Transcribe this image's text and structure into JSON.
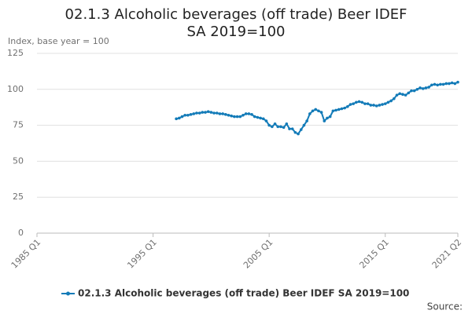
{
  "chart_data": {
    "type": "line",
    "title": "02.1.3 Alcoholic beverages (off trade) Beer IDEF SA 2019=100",
    "y_label": "Index, base year = 100",
    "source": "Source:",
    "xlim": [
      "1985 Q1",
      "2021 Q2"
    ],
    "xticks": [
      "1985 Q1",
      "1995 Q1",
      "2005 Q1",
      "2015 Q1",
      "2021 Q2"
    ],
    "ylim": [
      0,
      125
    ],
    "yticks": [
      0,
      25,
      50,
      75,
      100,
      125
    ],
    "grid": true,
    "x": [
      "1997 Q1",
      "1997 Q2",
      "1997 Q3",
      "1997 Q4",
      "1998 Q1",
      "1998 Q2",
      "1998 Q3",
      "1998 Q4",
      "1999 Q1",
      "1999 Q2",
      "1999 Q3",
      "1999 Q4",
      "2000 Q1",
      "2000 Q2",
      "2000 Q3",
      "2000 Q4",
      "2001 Q1",
      "2001 Q2",
      "2001 Q3",
      "2001 Q4",
      "2002 Q1",
      "2002 Q2",
      "2002 Q3",
      "2002 Q4",
      "2003 Q1",
      "2003 Q2",
      "2003 Q3",
      "2003 Q4",
      "2004 Q1",
      "2004 Q2",
      "2004 Q3",
      "2004 Q4",
      "2005 Q1",
      "2005 Q2",
      "2005 Q3",
      "2005 Q4",
      "2006 Q1",
      "2006 Q2",
      "2006 Q3",
      "2006 Q4",
      "2007 Q1",
      "2007 Q2",
      "2007 Q3",
      "2007 Q4",
      "2008 Q1",
      "2008 Q2",
      "2008 Q3",
      "2008 Q4",
      "2009 Q1",
      "2009 Q2",
      "2009 Q3",
      "2009 Q4",
      "2010 Q1",
      "2010 Q2",
      "2010 Q3",
      "2010 Q4",
      "2011 Q1",
      "2011 Q2",
      "2011 Q3",
      "2011 Q4",
      "2012 Q1",
      "2012 Q2",
      "2012 Q3",
      "2012 Q4",
      "2013 Q1",
      "2013 Q2",
      "2013 Q3",
      "2013 Q4",
      "2014 Q1",
      "2014 Q2",
      "2014 Q3",
      "2014 Q4",
      "2015 Q1",
      "2015 Q2",
      "2015 Q3",
      "2015 Q4",
      "2016 Q1",
      "2016 Q2",
      "2016 Q3",
      "2016 Q4",
      "2017 Q1",
      "2017 Q2",
      "2017 Q3",
      "2017 Q4",
      "2018 Q1",
      "2018 Q2",
      "2018 Q3",
      "2018 Q4",
      "2019 Q1",
      "2019 Q2",
      "2019 Q3",
      "2019 Q4",
      "2020 Q1",
      "2020 Q2",
      "2020 Q3",
      "2020 Q4",
      "2021 Q1",
      "2021 Q2"
    ],
    "series": [
      {
        "name": "02.1.3 Alcoholic beverages (off trade) Beer IDEF SA 2019=100",
        "color": "#137bb8",
        "values": [
          79.5,
          80,
          81,
          82,
          82,
          82.5,
          83,
          83.5,
          83.5,
          84,
          84,
          84.5,
          84,
          83.5,
          83.5,
          83,
          83,
          82.5,
          82,
          81.5,
          81,
          81,
          81,
          82,
          83,
          83,
          82.5,
          81,
          80.5,
          80,
          79.5,
          78,
          75,
          74,
          76,
          74,
          74,
          73.5,
          76,
          72.5,
          72.5,
          70,
          69,
          72,
          75,
          78,
          83,
          85,
          86,
          85,
          84,
          78,
          80,
          81,
          85,
          85.5,
          86,
          86.5,
          87,
          88,
          89.5,
          90,
          91,
          91.5,
          91,
          90,
          90,
          89,
          89,
          88.5,
          89,
          89.5,
          90,
          91,
          92,
          93.5,
          96,
          97,
          96.5,
          96,
          97.5,
          99,
          99,
          100,
          101,
          100.5,
          101,
          101.5,
          103,
          103.5,
          103,
          103.5,
          103.5,
          104,
          104,
          104.5,
          104,
          105
        ]
      }
    ]
  }
}
